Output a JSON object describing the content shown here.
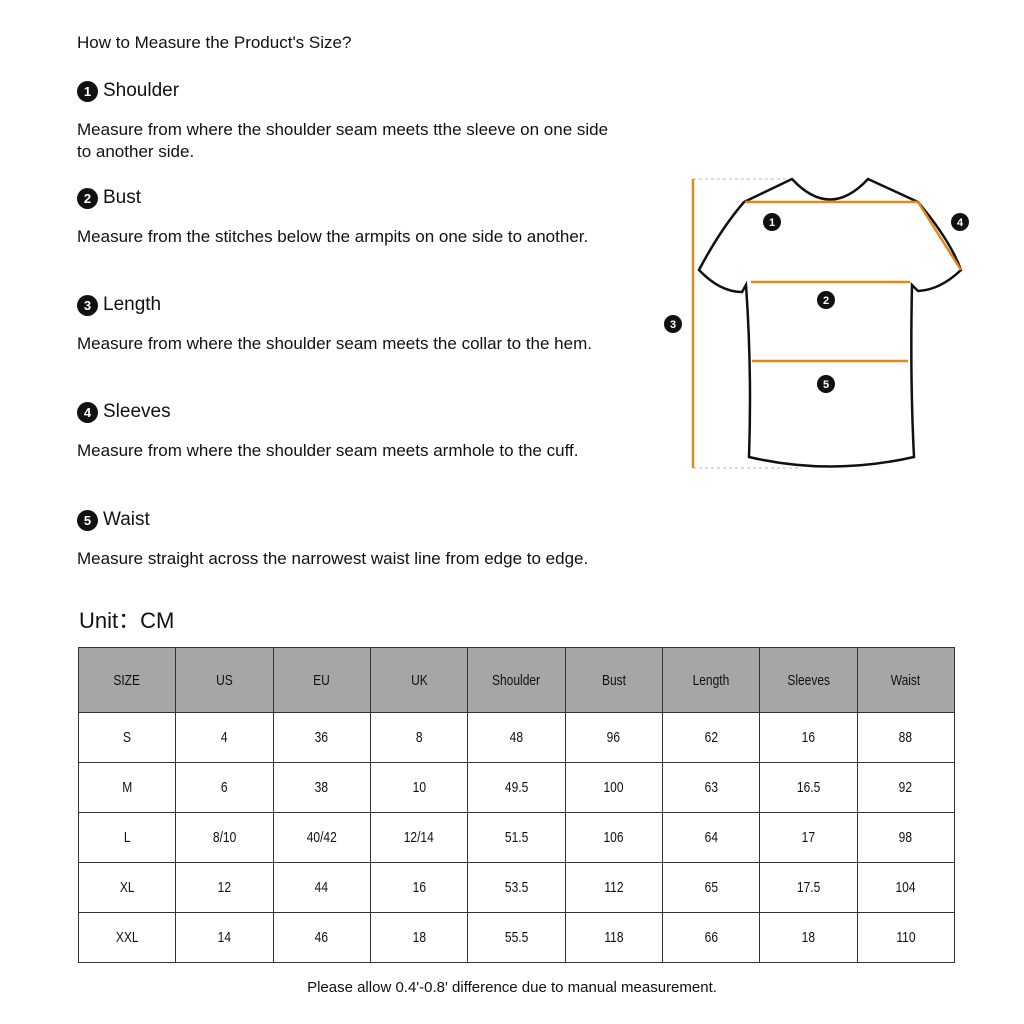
{
  "title": "How to Measure the Product's Size?",
  "sections": [
    {
      "num": "1",
      "name": "Shoulder",
      "desc": "Measure from where the shoulder seam meets tthe sleeve on one side to another side."
    },
    {
      "num": "2",
      "name": "Bust",
      "desc": "Measure from the stitches below the armpits on one side to another."
    },
    {
      "num": "3",
      "name": "Length",
      "desc": "Measure from where the shoulder seam meets the collar to the hem."
    },
    {
      "num": "4",
      "name": "Sleeves",
      "desc": "Measure from where the shoulder seam meets armhole to the cuff."
    },
    {
      "num": "5",
      "name": "Waist",
      "desc": "Measure straight across the narrowest waist line from edge to edge."
    }
  ],
  "unit": "Unit：CM",
  "table": {
    "headers": [
      "SIZE",
      "US",
      "EU",
      "UK",
      "Shoulder",
      "Bust",
      "Length",
      "Sleeves",
      "Waist"
    ],
    "rows": [
      [
        "S",
        "4",
        "36",
        "8",
        "48",
        "96",
        "62",
        "16",
        "88"
      ],
      [
        "M",
        "6",
        "38",
        "10",
        "49.5",
        "100",
        "63",
        "16.5",
        "92"
      ],
      [
        "L",
        "8/10",
        "40/42",
        "12/14",
        "51.5",
        "106",
        "64",
        "17",
        "98"
      ],
      [
        "XL",
        "12",
        "44",
        "16",
        "53.5",
        "112",
        "65",
        "17.5",
        "104"
      ],
      [
        "XXL",
        "14",
        "46",
        "18",
        "55.5",
        "118",
        "66",
        "18",
        "110"
      ]
    ]
  },
  "note": "Please allow 0.4'-0.8' difference due to manual measurement.",
  "colors": {
    "measure_line": "#e08a1a",
    "header_bg": "#a6a6a6"
  }
}
